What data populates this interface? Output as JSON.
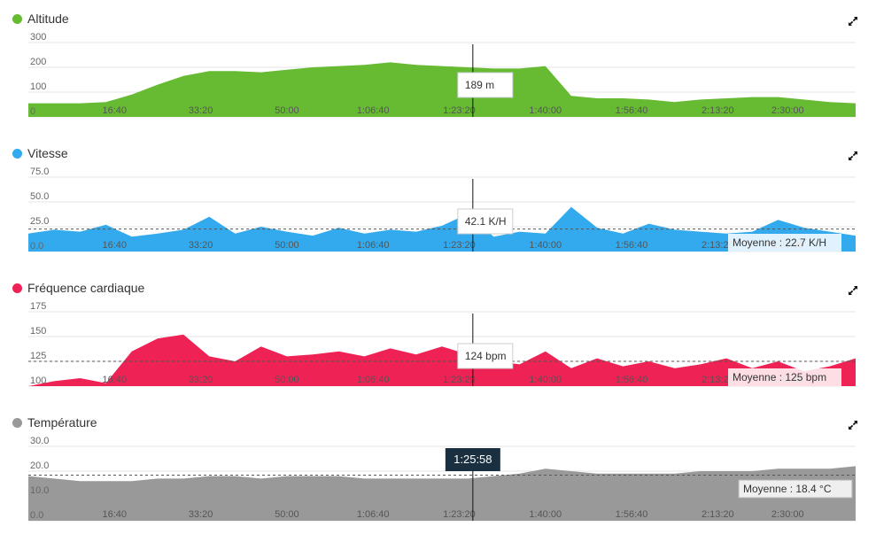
{
  "icons": {
    "expand": "expand-icon"
  },
  "time_ticks": [
    "16:40",
    "33:20",
    "50:00",
    "1:06:40",
    "1:23:20",
    "1:40:00",
    "1:56:40",
    "2:13:20",
    "2:30:00"
  ],
  "cursor": {
    "time_label": "1:25:58",
    "time_seconds": 5158
  },
  "chart_data": [
    {
      "type": "area",
      "title": "Altitude",
      "color": "#66bb33",
      "unit": "m",
      "ylim": [
        0,
        300
      ],
      "yticks": [
        0,
        100,
        200,
        300
      ],
      "xlim": [
        0,
        9600
      ],
      "grid": true,
      "tooltip": "189 m",
      "x": [
        0,
        300,
        600,
        900,
        1200,
        1500,
        1800,
        2100,
        2400,
        2700,
        3000,
        3300,
        3600,
        3900,
        4200,
        4500,
        4800,
        5100,
        5400,
        5700,
        6000,
        6300,
        6600,
        6900,
        7200,
        7500,
        7800,
        8100,
        8400,
        8700,
        9000,
        9300,
        9600
      ],
      "values": [
        55,
        55,
        55,
        60,
        90,
        130,
        165,
        185,
        185,
        180,
        190,
        200,
        205,
        210,
        220,
        210,
        205,
        200,
        195,
        195,
        205,
        85,
        75,
        75,
        70,
        60,
        70,
        75,
        80,
        80,
        70,
        60,
        55
      ]
    },
    {
      "type": "area",
      "title": "Vitesse",
      "color": "#33aaee",
      "unit": "K/H",
      "ylim": [
        0,
        75
      ],
      "yticks": [
        "0.0",
        "25.0",
        "50.0",
        "75.0"
      ],
      "xlim": [
        0,
        9600
      ],
      "grid": true,
      "average": 22.7,
      "average_label": "Moyenne : 22.7 K/H",
      "tooltip": "42.1 K/H",
      "x": [
        0,
        300,
        600,
        900,
        1200,
        1500,
        1800,
        2100,
        2400,
        2700,
        3000,
        3300,
        3600,
        3900,
        4200,
        4500,
        4800,
        5100,
        5400,
        5700,
        6000,
        6300,
        6600,
        6900,
        7200,
        7500,
        7800,
        8100,
        8400,
        8700,
        9000,
        9300,
        9600
      ],
      "values": [
        18,
        22,
        20,
        27,
        15,
        18,
        22,
        35,
        18,
        25,
        20,
        16,
        24,
        18,
        22,
        20,
        26,
        38,
        15,
        20,
        18,
        45,
        24,
        18,
        28,
        22,
        20,
        18,
        20,
        32,
        24,
        20,
        16
      ]
    },
    {
      "type": "area",
      "title": "Fréquence cardiaque",
      "color": "#ee2255",
      "unit": "bpm",
      "ylim": [
        100,
        175
      ],
      "yticks": [
        "100",
        "125",
        "150",
        "175"
      ],
      "xlim": [
        0,
        9600
      ],
      "grid": true,
      "average": 125,
      "average_label": "Moyenne : 125 bpm",
      "tooltip": "124 bpm",
      "x": [
        0,
        300,
        600,
        900,
        1200,
        1500,
        1800,
        2100,
        2400,
        2700,
        3000,
        3300,
        3600,
        3900,
        4200,
        4500,
        4800,
        5100,
        5400,
        5700,
        6000,
        6300,
        6600,
        6900,
        7200,
        7500,
        7800,
        8100,
        8400,
        8700,
        9000,
        9300,
        9600
      ],
      "values": [
        100,
        105,
        108,
        103,
        135,
        148,
        152,
        130,
        125,
        140,
        130,
        132,
        135,
        130,
        138,
        132,
        140,
        132,
        125,
        122,
        135,
        118,
        128,
        120,
        125,
        118,
        122,
        128,
        118,
        125,
        115,
        120,
        128
      ]
    },
    {
      "type": "area",
      "title": "Température",
      "color": "#999999",
      "unit": "°C",
      "ylim": [
        0,
        30
      ],
      "yticks": [
        "0.0",
        "10.0",
        "20.0",
        "30.0"
      ],
      "xlim": [
        0,
        9600
      ],
      "grid": true,
      "average": 18.4,
      "average_label": "Moyenne : 18.4 °C",
      "time_label": "1:25:58",
      "x": [
        0,
        300,
        600,
        900,
        1200,
        1500,
        1800,
        2100,
        2400,
        2700,
        3000,
        3300,
        3600,
        3900,
        4200,
        4500,
        4800,
        5100,
        5400,
        5700,
        6000,
        6300,
        6600,
        6900,
        7200,
        7500,
        7800,
        8100,
        8400,
        8700,
        9000,
        9300,
        9600
      ],
      "values": [
        18,
        17,
        16,
        16,
        16,
        17,
        17,
        18,
        18,
        17,
        18,
        18,
        18,
        17,
        17,
        17,
        17,
        17,
        18,
        19,
        21,
        20,
        19,
        19,
        19,
        19,
        20,
        20,
        20,
        21,
        21,
        21,
        22
      ]
    }
  ]
}
